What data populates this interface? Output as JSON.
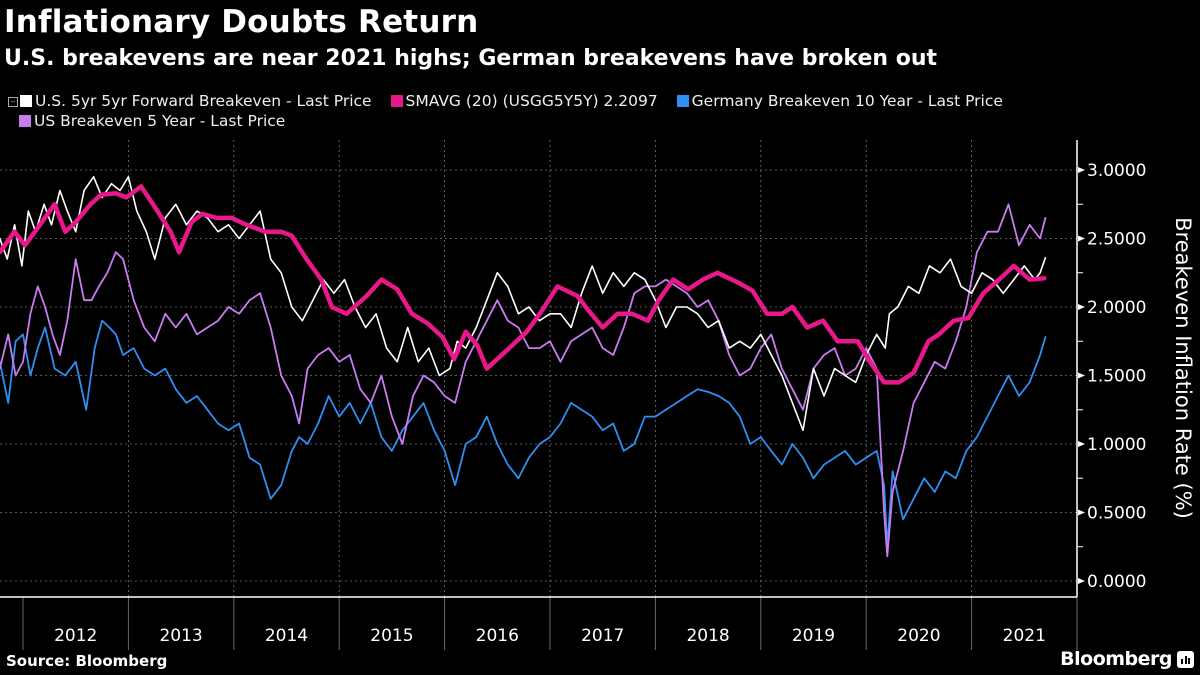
{
  "header": {
    "title": "Inflationary Doubts Return",
    "subtitle": "U.S. breakevens are near 2021 highs; German breakevens have broken out"
  },
  "legend": [
    {
      "label": "U.S. 5yr 5yr Forward Breakeven - Last Price",
      "color": "#ffffff"
    },
    {
      "label": "SMAVG (20) (USGG5Y5Y) 2.2097",
      "color": "#e8178a"
    },
    {
      "label": "Germany Breakeven 10 Year - Last Price",
      "color": "#2f8ff0"
    },
    {
      "label": "US Breakeven 5 Year - Last Price",
      "color": "#c77cf0"
    }
  ],
  "footer": {
    "source": "Source: Bloomberg",
    "brand": "Bloomberg"
  },
  "chart_data": {
    "type": "line",
    "title": "Inflationary Doubts Return",
    "subtitle": "U.S. breakevens are near 2021 highs; German breakevens have broken out",
    "xlabel": "",
    "ylabel": "Breakeven Inflation Rate (%)",
    "ylim": [
      0,
      3.0
    ],
    "y_ticks": [
      "0.0000",
      "0.5000",
      "1.0000",
      "1.5000",
      "2.0000",
      "2.5000",
      "3.0000"
    ],
    "x_ticks": [
      "2012",
      "2013",
      "2014",
      "2015",
      "2016",
      "2017",
      "2018",
      "2019",
      "2020",
      "2021"
    ],
    "xlim": [
      2011.78,
      2022.0
    ],
    "grid": true,
    "legend_position": "top-left",
    "y_axis_side": "right",
    "series": [
      {
        "name": "U.S. 5yr 5yr Forward Breakeven - Last Price",
        "color": "#ffffff",
        "x": [
          2011.78,
          2011.85,
          2011.92,
          2011.99,
          2012.05,
          2012.12,
          2012.2,
          2012.27,
          2012.35,
          2012.42,
          2012.5,
          2012.58,
          2012.67,
          2012.75,
          2012.84,
          2012.92,
          2013.0,
          2013.08,
          2013.17,
          2013.25,
          2013.35,
          2013.45,
          2013.55,
          2013.65,
          2013.75,
          2013.85,
          2013.95,
          2014.05,
          2014.15,
          2014.25,
          2014.35,
          2014.45,
          2014.55,
          2014.65,
          2014.75,
          2014.85,
          2014.95,
          2015.05,
          2015.15,
          2015.25,
          2015.35,
          2015.45,
          2015.55,
          2015.65,
          2015.75,
          2015.85,
          2015.95,
          2016.05,
          2016.12,
          2016.2,
          2016.3,
          2016.4,
          2016.5,
          2016.6,
          2016.7,
          2016.8,
          2016.9,
          2017.0,
          2017.1,
          2017.2,
          2017.3,
          2017.4,
          2017.5,
          2017.6,
          2017.7,
          2017.8,
          2017.9,
          2018.0,
          2018.1,
          2018.2,
          2018.3,
          2018.4,
          2018.5,
          2018.6,
          2018.7,
          2018.8,
          2018.9,
          2019.0,
          2019.1,
          2019.2,
          2019.3,
          2019.4,
          2019.5,
          2019.6,
          2019.7,
          2019.8,
          2019.9,
          2020.0,
          2020.1,
          2020.18,
          2020.22,
          2020.3,
          2020.4,
          2020.5,
          2020.6,
          2020.7,
          2020.8,
          2020.9,
          2021.0,
          2021.1,
          2021.2,
          2021.3,
          2021.4,
          2021.5,
          2021.6,
          2021.65,
          2021.7
        ],
        "values": [
          2.5,
          2.35,
          2.6,
          2.3,
          2.7,
          2.55,
          2.75,
          2.6,
          2.85,
          2.7,
          2.55,
          2.85,
          2.95,
          2.8,
          2.9,
          2.85,
          2.95,
          2.7,
          2.55,
          2.35,
          2.65,
          2.75,
          2.6,
          2.7,
          2.65,
          2.55,
          2.6,
          2.5,
          2.6,
          2.7,
          2.35,
          2.25,
          2.0,
          1.9,
          2.05,
          2.2,
          2.1,
          2.2,
          2.0,
          1.85,
          1.95,
          1.7,
          1.6,
          1.85,
          1.6,
          1.7,
          1.5,
          1.55,
          1.75,
          1.7,
          1.85,
          2.05,
          2.25,
          2.15,
          1.95,
          2.0,
          1.9,
          1.95,
          1.95,
          1.85,
          2.1,
          2.3,
          2.1,
          2.25,
          2.15,
          2.25,
          2.2,
          2.05,
          1.85,
          2.0,
          2.0,
          1.95,
          1.85,
          1.9,
          1.7,
          1.75,
          1.7,
          1.8,
          1.65,
          1.5,
          1.3,
          1.1,
          1.55,
          1.35,
          1.55,
          1.5,
          1.45,
          1.65,
          1.8,
          1.7,
          1.95,
          2.0,
          2.15,
          2.1,
          2.3,
          2.25,
          2.35,
          2.15,
          2.1,
          2.25,
          2.2,
          2.1,
          2.2,
          2.3,
          2.2,
          2.25,
          2.36
        ]
      },
      {
        "name": "SMAVG (20) (USGG5Y5Y) 2.2097",
        "color": "#e8178a",
        "x": [
          2011.78,
          2011.92,
          2012.02,
          2012.16,
          2012.3,
          2012.4,
          2012.5,
          2012.64,
          2012.74,
          2012.88,
          2012.98,
          2013.12,
          2013.26,
          2013.4,
          2013.48,
          2013.6,
          2013.7,
          2013.84,
          2013.98,
          2014.12,
          2014.3,
          2014.45,
          2014.55,
          2014.69,
          2014.83,
          2014.93,
          2015.07,
          2015.26,
          2015.4,
          2015.55,
          2015.69,
          2015.84,
          2015.98,
          2016.09,
          2016.2,
          2016.31,
          2016.4,
          2016.5,
          2016.64,
          2016.78,
          2016.93,
          2017.07,
          2017.26,
          2017.36,
          2017.5,
          2017.64,
          2017.78,
          2017.93,
          2018.03,
          2018.17,
          2018.31,
          2018.45,
          2018.59,
          2018.78,
          2018.92,
          2019.06,
          2019.2,
          2019.3,
          2019.44,
          2019.59,
          2019.73,
          2019.83,
          2019.92,
          2020.02,
          2020.17,
          2020.31,
          2020.45,
          2020.59,
          2020.69,
          2020.83,
          2020.97,
          2021.11,
          2021.26,
          2021.4,
          2021.55,
          2021.69
        ],
        "values": [
          2.4,
          2.55,
          2.45,
          2.6,
          2.75,
          2.55,
          2.62,
          2.75,
          2.82,
          2.83,
          2.8,
          2.88,
          2.72,
          2.55,
          2.4,
          2.62,
          2.68,
          2.65,
          2.65,
          2.6,
          2.55,
          2.55,
          2.52,
          2.35,
          2.2,
          2.0,
          1.95,
          2.08,
          2.2,
          2.13,
          1.95,
          1.88,
          1.78,
          1.62,
          1.82,
          1.72,
          1.55,
          1.62,
          1.72,
          1.82,
          1.98,
          2.15,
          2.08,
          1.98,
          1.85,
          1.95,
          1.95,
          1.9,
          2.05,
          2.2,
          2.13,
          2.2,
          2.25,
          2.18,
          2.12,
          1.95,
          1.95,
          2.0,
          1.85,
          1.9,
          1.75,
          1.75,
          1.75,
          1.62,
          1.45,
          1.45,
          1.52,
          1.75,
          1.8,
          1.9,
          1.92,
          2.1,
          2.2,
          2.3,
          2.2,
          2.21
        ]
      },
      {
        "name": "Germany Breakeven 10 Year - Last Price",
        "color": "#2f8ff0",
        "x": [
          2011.78,
          2011.86,
          2011.93,
          2012.0,
          2012.07,
          2012.14,
          2012.21,
          2012.3,
          2012.4,
          2012.5,
          2012.6,
          2012.68,
          2012.75,
          2012.82,
          2012.88,
          2012.95,
          2013.05,
          2013.15,
          2013.25,
          2013.35,
          2013.45,
          2013.55,
          2013.65,
          2013.75,
          2013.85,
          2013.95,
          2014.05,
          2014.15,
          2014.25,
          2014.35,
          2014.45,
          2014.55,
          2014.62,
          2014.7,
          2014.8,
          2014.9,
          2015.0,
          2015.1,
          2015.2,
          2015.3,
          2015.4,
          2015.5,
          2015.6,
          2015.7,
          2015.8,
          2015.9,
          2016.0,
          2016.1,
          2016.2,
          2016.3,
          2016.4,
          2016.5,
          2016.6,
          2016.7,
          2016.8,
          2016.9,
          2017.0,
          2017.1,
          2017.2,
          2017.3,
          2017.4,
          2017.5,
          2017.6,
          2017.7,
          2017.8,
          2017.9,
          2018.0,
          2018.1,
          2018.2,
          2018.3,
          2018.4,
          2018.5,
          2018.6,
          2018.7,
          2018.8,
          2018.9,
          2019.0,
          2019.1,
          2019.2,
          2019.3,
          2019.4,
          2019.5,
          2019.6,
          2019.7,
          2019.8,
          2019.9,
          2020.0,
          2020.1,
          2020.17,
          2020.2,
          2020.25,
          2020.35,
          2020.45,
          2020.55,
          2020.65,
          2020.75,
          2020.85,
          2020.95,
          2021.05,
          2021.15,
          2021.25,
          2021.35,
          2021.45,
          2021.55,
          2021.65,
          2021.7
        ],
        "values": [
          1.6,
          1.3,
          1.75,
          1.8,
          1.5,
          1.7,
          1.85,
          1.55,
          1.5,
          1.6,
          1.25,
          1.7,
          1.9,
          1.85,
          1.8,
          1.65,
          1.7,
          1.55,
          1.5,
          1.55,
          1.4,
          1.3,
          1.35,
          1.25,
          1.15,
          1.1,
          1.15,
          0.9,
          0.85,
          0.6,
          0.7,
          0.95,
          1.05,
          1.0,
          1.15,
          1.35,
          1.2,
          1.3,
          1.15,
          1.3,
          1.05,
          0.95,
          1.1,
          1.2,
          1.3,
          1.1,
          0.95,
          0.7,
          1.0,
          1.05,
          1.2,
          1.0,
          0.85,
          0.75,
          0.9,
          1.0,
          1.05,
          1.15,
          1.3,
          1.25,
          1.2,
          1.1,
          1.15,
          0.95,
          1.0,
          1.2,
          1.2,
          1.25,
          1.3,
          1.35,
          1.4,
          1.38,
          1.35,
          1.3,
          1.2,
          1.0,
          1.05,
          0.95,
          0.85,
          1.0,
          0.9,
          0.75,
          0.85,
          0.9,
          0.95,
          0.85,
          0.9,
          0.95,
          0.7,
          0.25,
          0.8,
          0.45,
          0.6,
          0.75,
          0.65,
          0.8,
          0.75,
          0.95,
          1.05,
          1.2,
          1.35,
          1.5,
          1.35,
          1.45,
          1.65,
          1.78
        ]
      },
      {
        "name": "US Breakeven 5 Year - Last Price",
        "color": "#c77cf0",
        "x": [
          2011.78,
          2011.86,
          2011.93,
          2012.0,
          2012.07,
          2012.14,
          2012.21,
          2012.28,
          2012.35,
          2012.42,
          2012.5,
          2012.58,
          2012.65,
          2012.72,
          2012.8,
          2012.88,
          2012.95,
          2013.05,
          2013.15,
          2013.25,
          2013.35,
          2013.45,
          2013.55,
          2013.65,
          2013.75,
          2013.85,
          2013.95,
          2014.05,
          2014.15,
          2014.25,
          2014.35,
          2014.45,
          2014.55,
          2014.62,
          2014.7,
          2014.8,
          2014.9,
          2015.0,
          2015.1,
          2015.2,
          2015.3,
          2015.4,
          2015.5,
          2015.6,
          2015.7,
          2015.8,
          2015.9,
          2016.0,
          2016.1,
          2016.2,
          2016.3,
          2016.4,
          2016.5,
          2016.6,
          2016.7,
          2016.8,
          2016.9,
          2017.0,
          2017.1,
          2017.2,
          2017.3,
          2017.4,
          2017.5,
          2017.6,
          2017.7,
          2017.8,
          2017.9,
          2018.0,
          2018.1,
          2018.2,
          2018.3,
          2018.4,
          2018.5,
          2018.6,
          2018.7,
          2018.8,
          2018.9,
          2019.0,
          2019.1,
          2019.2,
          2019.3,
          2019.4,
          2019.5,
          2019.6,
          2019.7,
          2019.8,
          2019.9,
          2020.0,
          2020.1,
          2020.17,
          2020.2,
          2020.25,
          2020.35,
          2020.45,
          2020.55,
          2020.65,
          2020.75,
          2020.85,
          2020.95,
          2021.05,
          2021.15,
          2021.25,
          2021.35,
          2021.45,
          2021.55,
          2021.65,
          2021.7
        ],
        "values": [
          1.55,
          1.8,
          1.5,
          1.6,
          1.95,
          2.15,
          2.0,
          1.8,
          1.65,
          1.9,
          2.35,
          2.05,
          2.05,
          2.15,
          2.25,
          2.4,
          2.35,
          2.05,
          1.85,
          1.75,
          1.95,
          1.85,
          1.95,
          1.8,
          1.85,
          1.9,
          2.0,
          1.95,
          2.05,
          2.1,
          1.85,
          1.5,
          1.35,
          1.15,
          1.55,
          1.65,
          1.7,
          1.6,
          1.65,
          1.4,
          1.3,
          1.5,
          1.2,
          1.0,
          1.35,
          1.5,
          1.45,
          1.35,
          1.3,
          1.6,
          1.75,
          1.9,
          2.05,
          1.9,
          1.85,
          1.7,
          1.7,
          1.75,
          1.6,
          1.75,
          1.8,
          1.85,
          1.7,
          1.65,
          1.85,
          2.1,
          2.15,
          2.15,
          2.2,
          2.15,
          2.1,
          2.0,
          2.05,
          1.9,
          1.65,
          1.5,
          1.55,
          1.7,
          1.8,
          1.55,
          1.4,
          1.25,
          1.55,
          1.65,
          1.7,
          1.5,
          1.55,
          1.7,
          1.55,
          0.5,
          0.18,
          0.65,
          0.95,
          1.3,
          1.45,
          1.6,
          1.55,
          1.75,
          2.0,
          2.4,
          2.55,
          2.55,
          2.75,
          2.45,
          2.6,
          2.5,
          2.65
        ]
      }
    ]
  }
}
